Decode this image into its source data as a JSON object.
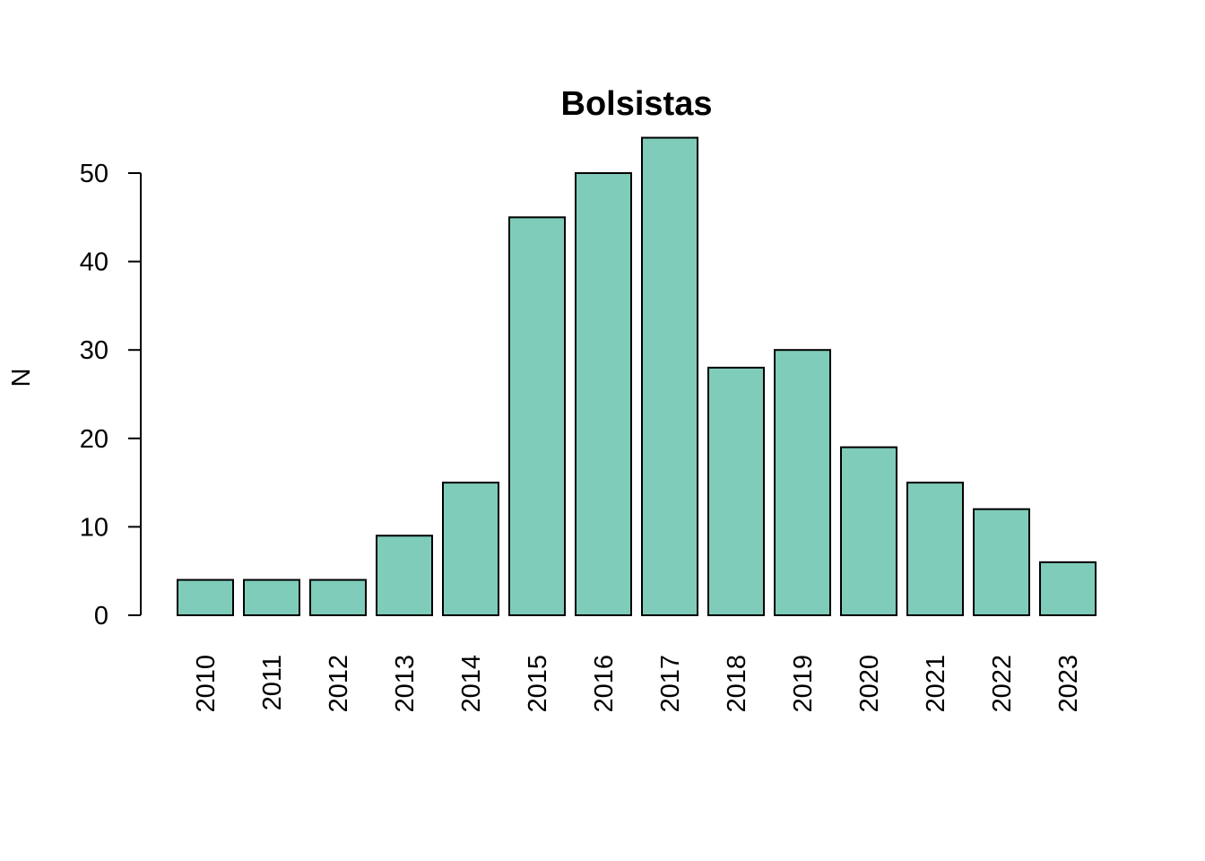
{
  "chart_data": {
    "type": "bar",
    "title": "Bolsistas",
    "xlabel": "",
    "ylabel": "N",
    "categories": [
      "2010",
      "2011",
      "2012",
      "2013",
      "2014",
      "2015",
      "2016",
      "2017",
      "2018",
      "2019",
      "2020",
      "2021",
      "2022",
      "2023"
    ],
    "values": [
      4,
      4,
      4,
      9,
      15,
      45,
      50,
      54,
      28,
      30,
      19,
      15,
      12,
      6
    ],
    "yticks": [
      0,
      10,
      20,
      30,
      40,
      50
    ],
    "ylim": [
      0,
      54
    ],
    "grid": false,
    "legend": "none",
    "bar_color": "#7fccba",
    "edge_color": "#000000",
    "x_tick_rotation": "vertical"
  }
}
